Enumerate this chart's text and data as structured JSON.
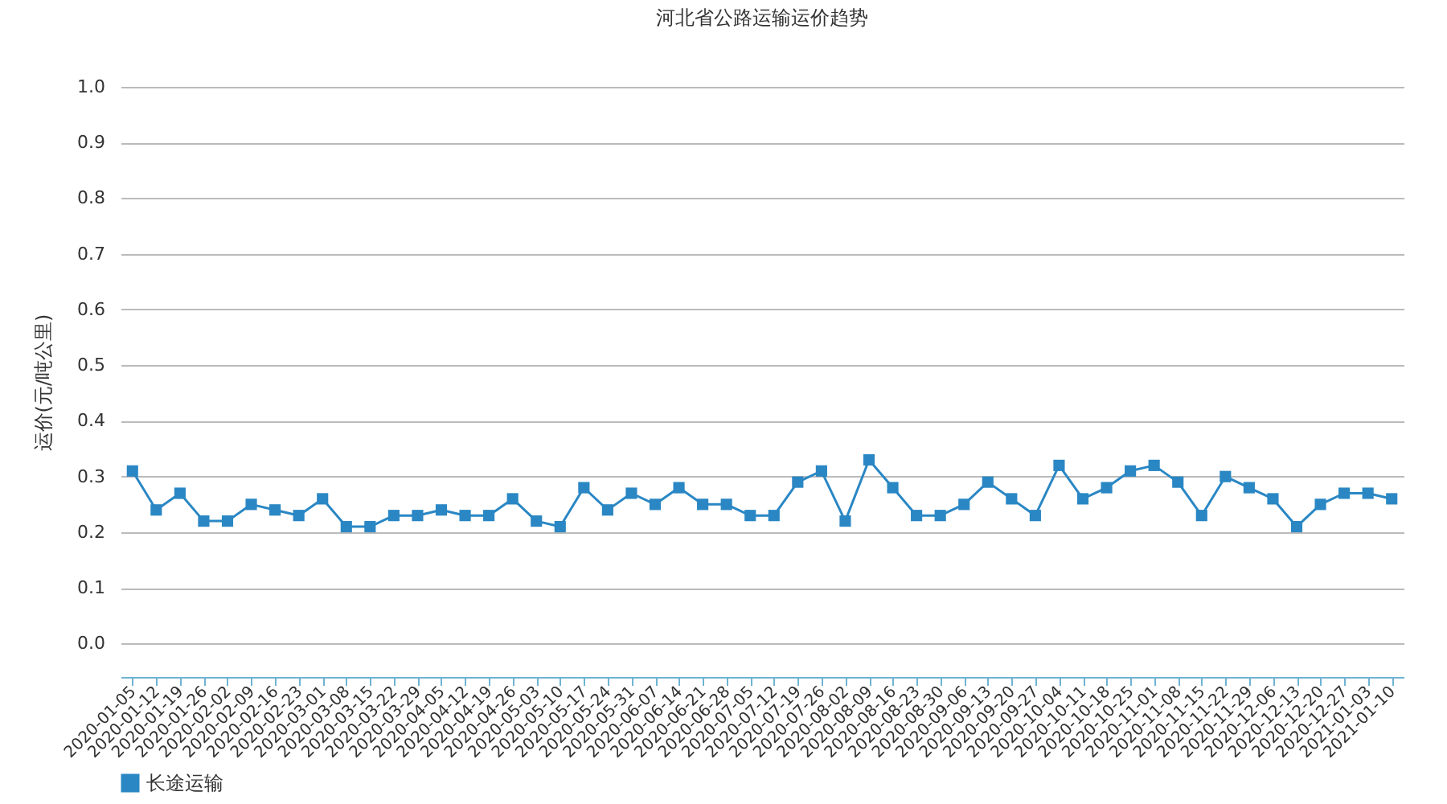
{
  "chart_data": {
    "type": "line",
    "title": "河北省公路运输运价趋势",
    "ylabel": "运价(元/吨公里)",
    "categories": [
      "2020-01-05",
      "2020-01-12",
      "2020-01-19",
      "2020-01-26",
      "2020-02-02",
      "2020-02-09",
      "2020-02-16",
      "2020-02-23",
      "2020-03-01",
      "2020-03-08",
      "2020-03-15",
      "2020-03-22",
      "2020-03-29",
      "2020-04-05",
      "2020-04-12",
      "2020-04-19",
      "2020-04-26",
      "2020-05-03",
      "2020-05-10",
      "2020-05-17",
      "2020-05-24",
      "2020-05-31",
      "2020-06-07",
      "2020-06-14",
      "2020-06-21",
      "2020-06-28",
      "2020-07-05",
      "2020-07-12",
      "2020-07-19",
      "2020-07-26",
      "2020-08-02",
      "2020-08-09",
      "2020-08-16",
      "2020-08-23",
      "2020-08-30",
      "2020-09-06",
      "2020-09-13",
      "2020-09-20",
      "2020-09-27",
      "2020-10-04",
      "2020-10-11",
      "2020-10-18",
      "2020-10-25",
      "2020-11-01",
      "2020-11-08",
      "2020-11-15",
      "2020-11-22",
      "2020-11-29",
      "2020-12-06",
      "2020-12-13",
      "2020-12-20",
      "2020-12-27",
      "2021-01-03",
      "2021-01-10"
    ],
    "series": [
      {
        "name": "长途运输",
        "color": "#2a87c4",
        "values": [
          0.31,
          0.24,
          0.27,
          0.22,
          0.22,
          0.25,
          0.24,
          0.23,
          0.26,
          0.21,
          0.21,
          0.23,
          0.23,
          0.24,
          0.23,
          0.23,
          0.26,
          0.22,
          0.21,
          0.28,
          0.24,
          0.27,
          0.25,
          0.28,
          0.25,
          0.25,
          0.23,
          0.23,
          0.29,
          0.31,
          0.22,
          0.33,
          0.28,
          0.23,
          0.23,
          0.25,
          0.29,
          0.26,
          0.23,
          0.32,
          0.26,
          0.28,
          0.31,
          0.32,
          0.29,
          0.23,
          0.3,
          0.28,
          0.26,
          0.21,
          0.25,
          0.27,
          0.27,
          0.26
        ]
      }
    ],
    "ylim": [
      -0.06,
      1.0
    ],
    "yticks": [
      {
        "value": 0,
        "label": "0.0"
      },
      0.1,
      0.2,
      0.3,
      0.4,
      0.5,
      0.6,
      0.7,
      0.8,
      0.9,
      {
        "value": 1,
        "label": "1.0"
      }
    ],
    "grid": "y",
    "legend": "bottom",
    "marker": "square",
    "line_style": "solid"
  }
}
